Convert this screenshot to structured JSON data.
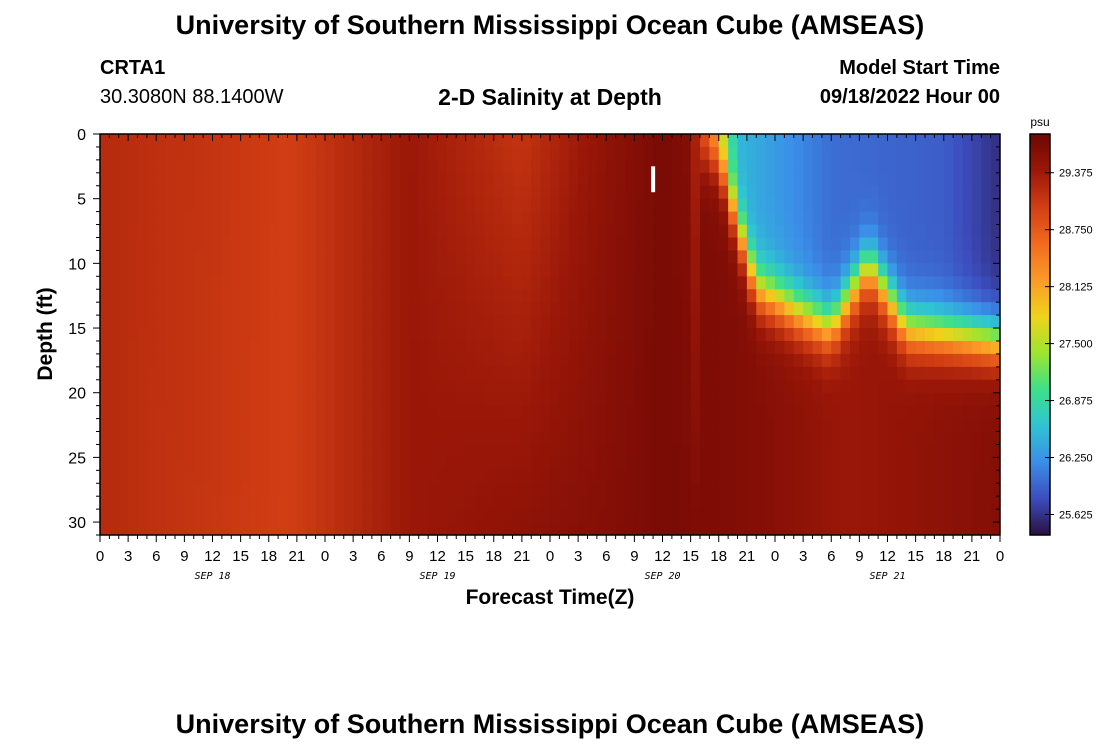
{
  "page": {
    "title": "University of Southern Mississippi Ocean Cube (AMSEAS)",
    "station_id": "CRTA1",
    "location": "30.3080N  88.1400W",
    "subtitle": "2-D Salinity at Depth",
    "model_start_label": "Model Start Time",
    "model_start_value": "09/18/2022 Hour 00",
    "footer_title": "University of Southern Mississippi Ocean Cube (AMSEAS)"
  },
  "chart_data": {
    "type": "heatmap",
    "title": "2-D Salinity at Depth",
    "xlabel": "Forecast Time(Z)",
    "ylabel": "Depth (ft)",
    "x_unit": "hours since model start",
    "xlim": [
      0,
      96
    ],
    "ylim": [
      0,
      31
    ],
    "y_inverted": true,
    "x_ticks": [
      0,
      3,
      6,
      9,
      12,
      15,
      18,
      21,
      24,
      27,
      30,
      33,
      36,
      39,
      42,
      45,
      48,
      51,
      54,
      57,
      60,
      63,
      66,
      69,
      72,
      75,
      78,
      81,
      84,
      87,
      90,
      93,
      96
    ],
    "x_tick_labels": [
      "0",
      "3",
      "6",
      "9",
      "12",
      "15",
      "18",
      "21",
      "0",
      "3",
      "6",
      "9",
      "12",
      "15",
      "18",
      "21",
      "0",
      "3",
      "6",
      "9",
      "12",
      "15",
      "18",
      "21",
      "0",
      "3",
      "6",
      "9",
      "12",
      "15",
      "18",
      "21",
      "0"
    ],
    "date_labels": [
      {
        "hour": 12,
        "label": "SEP 18"
      },
      {
        "hour": 36,
        "label": "SEP 19"
      },
      {
        "hour": 60,
        "label": "SEP 20"
      },
      {
        "hour": 84,
        "label": "SEP 21"
      }
    ],
    "y_ticks": [
      0,
      5,
      10,
      15,
      20,
      25,
      30
    ],
    "y_tick_labels": [
      "0",
      "5",
      "10",
      "15",
      "20",
      "25",
      "30"
    ],
    "colorbar": {
      "unit": "psu",
      "min": 25.4,
      "max": 29.8,
      "tick_values": [
        29.375,
        28.75,
        28.125,
        27.5,
        26.875,
        26.25,
        25.625
      ],
      "tick_labels": [
        "29.375",
        "28.750",
        "28.125",
        "27.500",
        "26.875",
        "26.250",
        "25.625"
      ],
      "colors": [
        "#2a1040",
        "#3c4dbe",
        "#3b8ee8",
        "#2fc4d2",
        "#3ee089",
        "#9de52e",
        "#f0d21c",
        "#fb9a28",
        "#f16a1f",
        "#d23e14",
        "#9a1708",
        "#6e0704"
      ]
    },
    "salinity_profile_surface": [
      {
        "hour": 0,
        "psu": 29.2
      },
      {
        "hour": 12,
        "psu": 29.1
      },
      {
        "hour": 20,
        "psu": 29.0
      },
      {
        "hour": 33,
        "psu": 29.4
      },
      {
        "hour": 45,
        "psu": 29.1
      },
      {
        "hour": 54,
        "psu": 29.5
      },
      {
        "hour": 60,
        "psu": 29.7
      },
      {
        "hour": 63,
        "psu": 29.6
      },
      {
        "hour": 65,
        "psu": 28.4
      },
      {
        "hour": 68,
        "psu": 26.5
      },
      {
        "hour": 78,
        "psu": 26.0
      },
      {
        "hour": 90,
        "psu": 25.9
      },
      {
        "hour": 96,
        "psu": 25.6
      }
    ],
    "salinity_profile_bottom": [
      {
        "hour": 0,
        "psu": 29.2
      },
      {
        "hour": 20,
        "psu": 29.0
      },
      {
        "hour": 33,
        "psu": 29.4
      },
      {
        "hour": 54,
        "psu": 29.6
      },
      {
        "hour": 60,
        "psu": 29.7
      },
      {
        "hour": 70,
        "psu": 29.6
      },
      {
        "hour": 80,
        "psu": 29.4
      },
      {
        "hour": 96,
        "psu": 29.6
      }
    ],
    "halocline_depth_ft": [
      {
        "hour": 66,
        "depth": 2
      },
      {
        "hour": 70,
        "depth": 12
      },
      {
        "hour": 75,
        "depth": 14
      },
      {
        "hour": 78,
        "depth": 15
      },
      {
        "hour": 82,
        "depth": 10
      },
      {
        "hour": 86,
        "depth": 15
      },
      {
        "hour": 96,
        "depth": 16
      }
    ],
    "marker": {
      "hour": 59,
      "depth_top": 2.5,
      "depth_bottom": 4.5
    }
  }
}
